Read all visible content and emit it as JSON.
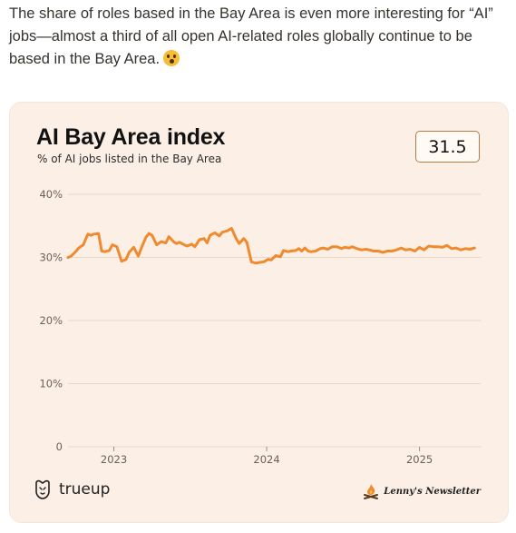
{
  "intro_text": "The share of roles based in the Bay Area is even more interesting for “AI” jobs—almost a third of all open AI-related roles globally continue to be based in the Bay Area.",
  "emoji_icon": "astonished-face-emoji",
  "card": {
    "title": "AI Bay Area index",
    "subtitle": "% of AI jobs listed in the Bay Area",
    "current_value": "31.5",
    "footer_left_brand": "trueup",
    "footer_left_icon": "trueup-logo-icon",
    "footer_right_brand": "Lenny's Newsletter",
    "footer_right_icon": "campfire-logo-icon"
  },
  "colors": {
    "line": "#ef8a2f",
    "card_bg": "#fcf0e6",
    "grid": "#e5d7c9",
    "badge_border": "#b57a4a"
  },
  "chart_data": {
    "type": "line",
    "ylim": [
      0,
      40
    ],
    "y_ticks": [
      0,
      10,
      20,
      30,
      40
    ],
    "y_tick_labels": [
      "0",
      "10%",
      "20%",
      "30%",
      "40%"
    ],
    "x_ticks": [
      2023,
      2024,
      2025
    ],
    "x_tick_labels": [
      "2023",
      "2024",
      "2025"
    ],
    "xlim": [
      2022.7,
      2025.4
    ],
    "grid": true,
    "series": [
      {
        "x": [
          2022.7,
          2022.72,
          2022.75,
          2022.77,
          2022.8,
          2022.83,
          2022.85,
          2022.87,
          2022.9,
          2022.92,
          2022.94,
          2022.97,
          2022.99,
          2023.0,
          2023.02,
          2023.05,
          2023.08,
          2023.1,
          2023.13,
          2023.16,
          2023.18,
          2023.21,
          2023.23,
          2023.25,
          2023.28,
          2023.31,
          2023.34,
          2023.36,
          2023.39,
          2023.41,
          2023.43,
          2023.46,
          2023.48,
          2023.51,
          2023.53,
          2023.56,
          2023.59,
          2023.61,
          2023.63,
          2023.66,
          2023.69,
          2023.71,
          2023.74,
          2023.77,
          2023.8,
          2023.82,
          2023.85,
          2023.87,
          2023.9,
          2023.93,
          2023.95,
          2023.98,
          2024.01,
          2024.03,
          2024.06,
          2024.09,
          2024.11,
          2024.14,
          2024.16,
          2024.19,
          2024.21,
          2024.23,
          2024.25,
          2024.27,
          2024.29,
          2024.32,
          2024.35,
          2024.37,
          2024.4,
          2024.43,
          2024.46,
          2024.49,
          2024.51,
          2024.54,
          2024.56,
          2024.59,
          2024.62,
          2024.65,
          2024.67,
          2024.7,
          2024.73,
          2024.76,
          2024.79,
          2024.82,
          2024.85,
          2024.88,
          2024.91,
          2024.94,
          2024.97,
          2025.0,
          2025.03,
          2025.06,
          2025.09,
          2025.12,
          2025.15,
          2025.18,
          2025.21,
          2025.24,
          2025.27,
          2025.3,
          2025.33,
          2025.36
        ],
        "values": [
          30.0,
          30.2,
          30.9,
          31.5,
          32.0,
          33.7,
          33.5,
          33.7,
          33.8,
          31.0,
          30.9,
          31.1,
          32.0,
          31.9,
          31.7,
          29.4,
          29.7,
          30.8,
          31.6,
          30.2,
          31.5,
          33.2,
          33.8,
          33.5,
          32.0,
          32.5,
          32.3,
          33.3,
          32.5,
          32.2,
          32.4,
          32.0,
          31.8,
          32.1,
          31.7,
          32.8,
          33.0,
          32.3,
          33.5,
          33.9,
          33.4,
          34.0,
          34.2,
          34.6,
          33.0,
          32.2,
          33.0,
          32.4,
          29.3,
          29.1,
          29.2,
          29.3,
          29.7,
          29.6,
          30.3,
          30.1,
          31.1,
          30.9,
          31.0,
          31.1,
          31.4,
          31.0,
          31.5,
          31.0,
          30.9,
          31.0,
          31.4,
          31.5,
          31.3,
          31.7,
          31.7,
          31.4,
          31.6,
          31.5,
          31.7,
          31.4,
          31.2,
          31.3,
          31.2,
          31.0,
          31.0,
          30.8,
          31.0,
          31.0,
          31.2,
          31.5,
          31.2,
          31.3,
          31.0,
          31.6,
          31.2,
          31.8,
          31.7,
          31.7,
          31.6,
          31.9,
          31.4,
          31.5,
          31.2,
          31.4,
          31.3,
          31.5
        ]
      }
    ]
  }
}
